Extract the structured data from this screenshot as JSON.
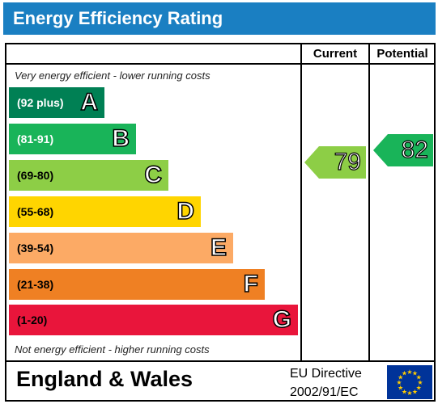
{
  "title": "Energy Efficiency Rating",
  "columns": {
    "current": "Current",
    "potential": "Potential"
  },
  "captions": {
    "top": "Very energy efficient - lower running costs",
    "bottom": "Not energy efficient - higher running costs"
  },
  "bands": [
    {
      "range": "(92 plus)",
      "letter": "A",
      "color": "#008054",
      "text_color": "#ffffff"
    },
    {
      "range": "(81-91)",
      "letter": "B",
      "color": "#19b459",
      "text_color": "#ffffff"
    },
    {
      "range": "(69-80)",
      "letter": "C",
      "color": "#8dce46",
      "text_color": "#000000"
    },
    {
      "range": "(55-68)",
      "letter": "D",
      "color": "#ffd500",
      "text_color": "#000000"
    },
    {
      "range": "(39-54)",
      "letter": "E",
      "color": "#fcaa65",
      "text_color": "#000000"
    },
    {
      "range": "(21-38)",
      "letter": "F",
      "color": "#ef8023",
      "text_color": "#000000"
    },
    {
      "range": "(1-20)",
      "letter": "G",
      "color": "#e9153b",
      "text_color": "#000000"
    }
  ],
  "ratings": {
    "current": {
      "value": "79",
      "band": "C",
      "color": "#8dce46"
    },
    "potential": {
      "value": "82",
      "band": "B",
      "color": "#19b459"
    }
  },
  "footer": {
    "country": "England & Wales",
    "directive_line1": "EU Directive",
    "directive_line2": "2002/91/EC"
  },
  "flag_icon": "eu-flag-icon"
}
